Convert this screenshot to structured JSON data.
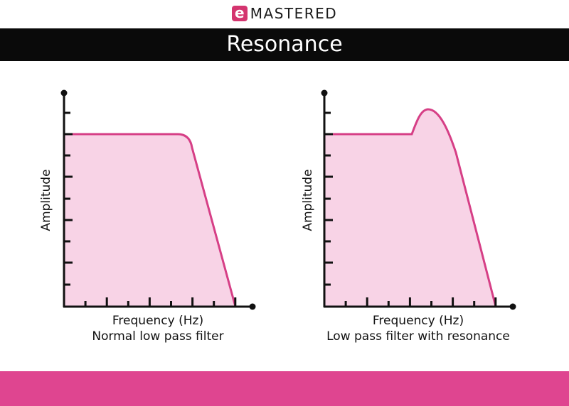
{
  "brand": {
    "logo_letter": "e",
    "name": "MASTERED"
  },
  "title": "Resonance",
  "colors": {
    "curve": "#d63f86",
    "fill": "#f8d3e6",
    "footer": "#df4590"
  },
  "charts": [
    {
      "ylabel": "Amplitude",
      "xlabel": "Frequency (Hz)",
      "caption": "Normal low pass filter",
      "type": "normal"
    },
    {
      "ylabel": "Amplitude",
      "xlabel": "Frequency (Hz)",
      "caption": "Low pass filter with resonance",
      "type": "resonance"
    }
  ]
}
